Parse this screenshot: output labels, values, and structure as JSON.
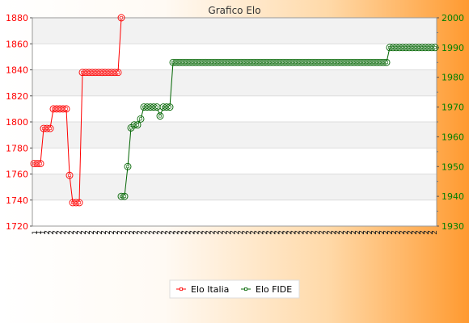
{
  "chart_data": {
    "type": "line",
    "title": "Grafico Elo",
    "grid": true,
    "legend_position": "bottom",
    "y_left": {
      "range": [
        1720,
        1880
      ],
      "ticks": [
        1720,
        1740,
        1760,
        1780,
        1800,
        1820,
        1840,
        1860,
        1880
      ],
      "color": "#ff0000"
    },
    "y_right": {
      "range": [
        1930,
        2000
      ],
      "ticks": [
        1930,
        1940,
        1950,
        1960,
        1970,
        1980,
        1990,
        2000
      ],
      "color": "#008000"
    },
    "x_tick_labels": [
      "1",
      "1",
      "1",
      "2",
      "2",
      "2",
      "2",
      "2",
      "2",
      "2",
      "2",
      "2",
      "2",
      "2",
      "2",
      "2",
      "2",
      "2",
      "2",
      "2",
      "2",
      "2",
      "2",
      "2",
      "2",
      "2",
      "2",
      "2",
      "2",
      "2",
      "2",
      "2",
      "2",
      "2",
      "2",
      "2",
      "2",
      "2",
      "2",
      "2",
      "2",
      "2",
      "2",
      "2",
      "2",
      "2",
      "2",
      "2",
      "2",
      "2",
      "2",
      "2",
      "2",
      "2",
      "2",
      "2",
      "2",
      "2",
      "2",
      "2",
      "2",
      "2",
      "2",
      "2",
      "2",
      "2",
      "2",
      "2",
      "2",
      "2",
      "2",
      "2",
      "2",
      "2",
      "2",
      "2",
      "2",
      "2",
      "2",
      "2",
      "2",
      "2",
      "2",
      "2",
      "2",
      "2",
      "2",
      "2",
      "2",
      "2",
      "2",
      "2",
      "2",
      "2",
      "2",
      "2",
      "2",
      "2",
      "2",
      "2"
    ],
    "series": [
      {
        "name": "Elo Italia",
        "axis": "left",
        "color": "#ff0000",
        "points": [
          [
            0,
            1768
          ],
          [
            1,
            1768
          ],
          [
            2,
            1768
          ],
          [
            3,
            1795
          ],
          [
            4,
            1795
          ],
          [
            5,
            1795
          ],
          [
            6,
            1810
          ],
          [
            7,
            1810
          ],
          [
            8,
            1810
          ],
          [
            9,
            1810
          ],
          [
            10,
            1810
          ],
          [
            11,
            1759
          ],
          [
            12,
            1738
          ],
          [
            13,
            1738
          ],
          [
            14,
            1738
          ],
          [
            15,
            1838
          ],
          [
            16,
            1838
          ],
          [
            17,
            1838
          ],
          [
            18,
            1838
          ],
          [
            19,
            1838
          ],
          [
            20,
            1838
          ],
          [
            21,
            1838
          ],
          [
            22,
            1838
          ],
          [
            23,
            1838
          ],
          [
            24,
            1838
          ],
          [
            25,
            1838
          ],
          [
            26,
            1838
          ],
          [
            27,
            1880
          ]
        ]
      },
      {
        "name": "Elo FIDE",
        "axis": "right",
        "color": "#006400",
        "points": [
          [
            27,
            1940
          ],
          [
            28,
            1940
          ],
          [
            29,
            1950
          ],
          [
            30,
            1963
          ],
          [
            31,
            1964
          ],
          [
            32,
            1964
          ],
          [
            33,
            1966
          ],
          [
            34,
            1970
          ],
          [
            35,
            1970
          ],
          [
            36,
            1970
          ],
          [
            37,
            1970
          ],
          [
            38,
            1970
          ],
          [
            39,
            1967
          ],
          [
            40,
            1970
          ],
          [
            41,
            1970
          ],
          [
            42,
            1970
          ],
          [
            43,
            1985
          ],
          [
            44,
            1985
          ],
          [
            45,
            1985
          ],
          [
            46,
            1985
          ],
          [
            47,
            1985
          ],
          [
            48,
            1985
          ],
          [
            49,
            1985
          ],
          [
            50,
            1985
          ],
          [
            51,
            1985
          ],
          [
            52,
            1985
          ],
          [
            53,
            1985
          ],
          [
            54,
            1985
          ],
          [
            55,
            1985
          ],
          [
            56,
            1985
          ],
          [
            57,
            1985
          ],
          [
            58,
            1985
          ],
          [
            59,
            1985
          ],
          [
            60,
            1985
          ],
          [
            61,
            1985
          ],
          [
            62,
            1985
          ],
          [
            63,
            1985
          ],
          [
            64,
            1985
          ],
          [
            65,
            1985
          ],
          [
            66,
            1985
          ],
          [
            67,
            1985
          ],
          [
            68,
            1985
          ],
          [
            69,
            1985
          ],
          [
            70,
            1985
          ],
          [
            71,
            1985
          ],
          [
            72,
            1985
          ],
          [
            73,
            1985
          ],
          [
            74,
            1985
          ],
          [
            75,
            1985
          ],
          [
            76,
            1985
          ],
          [
            77,
            1985
          ],
          [
            78,
            1985
          ],
          [
            79,
            1985
          ],
          [
            80,
            1985
          ],
          [
            81,
            1985
          ],
          [
            82,
            1985
          ],
          [
            83,
            1985
          ],
          [
            84,
            1985
          ],
          [
            85,
            1985
          ],
          [
            86,
            1985
          ],
          [
            87,
            1985
          ],
          [
            88,
            1985
          ],
          [
            89,
            1985
          ],
          [
            90,
            1985
          ],
          [
            91,
            1985
          ],
          [
            92,
            1985
          ],
          [
            93,
            1985
          ],
          [
            94,
            1985
          ],
          [
            95,
            1985
          ],
          [
            96,
            1985
          ],
          [
            97,
            1985
          ],
          [
            98,
            1985
          ],
          [
            99,
            1985
          ],
          [
            100,
            1985
          ],
          [
            101,
            1985
          ],
          [
            102,
            1985
          ],
          [
            103,
            1985
          ],
          [
            104,
            1985
          ],
          [
            105,
            1985
          ],
          [
            106,
            1985
          ],
          [
            107,
            1985
          ],
          [
            108,
            1985
          ],
          [
            109,
            1985
          ],
          [
            110,
            1990
          ],
          [
            111,
            1990
          ],
          [
            112,
            1990
          ],
          [
            113,
            1990
          ],
          [
            114,
            1990
          ],
          [
            115,
            1990
          ],
          [
            116,
            1990
          ],
          [
            117,
            1990
          ],
          [
            118,
            1990
          ],
          [
            119,
            1990
          ],
          [
            120,
            1990
          ],
          [
            121,
            1990
          ],
          [
            122,
            1990
          ],
          [
            123,
            1990
          ],
          [
            124,
            1990
          ]
        ]
      }
    ]
  }
}
